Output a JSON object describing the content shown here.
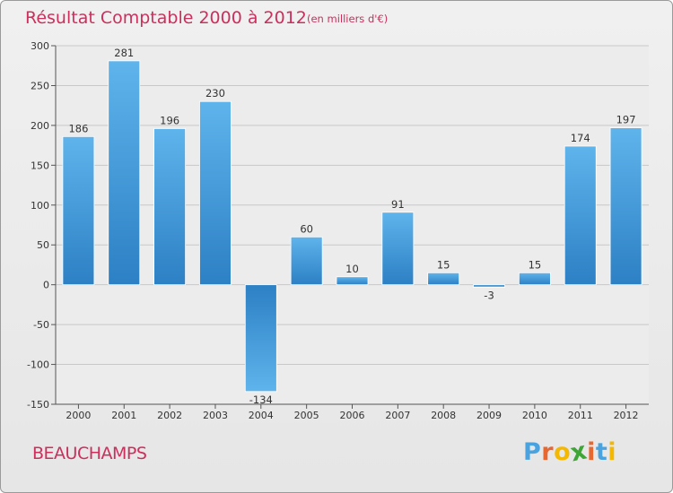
{
  "header": {
    "title": "Résultat Comptable 2000 à 2012",
    "subtitle": "(en milliers d'€)"
  },
  "footer": {
    "commune": "BEAUCHAMPS",
    "logo_letters": [
      "P",
      "r",
      "o",
      "x",
      "i",
      "t",
      "i"
    ],
    "logo_colors": [
      "#4aa3df",
      "#e8662f",
      "#f5b800",
      "#3fa535",
      "#e8662f",
      "#4aa3df",
      "#f5b800"
    ]
  },
  "colors": {
    "bar_top": "#5fb4ec",
    "bar_bottom": "#2c80c4",
    "accent": "#cc2f5c",
    "plot_bg": "#ececec"
  },
  "chart_data": {
    "type": "bar",
    "title": "Résultat Comptable 2000 à 2012",
    "subtitle": "(en milliers d'€)",
    "xlabel": "",
    "ylabel": "",
    "categories": [
      "2000",
      "2001",
      "2002",
      "2003",
      "2004",
      "2005",
      "2006",
      "2007",
      "2008",
      "2009",
      "2010",
      "2011",
      "2012"
    ],
    "values": [
      186,
      281,
      196,
      230,
      -134,
      60,
      10,
      91,
      15,
      -3,
      15,
      174,
      197
    ],
    "value_labels": [
      "186",
      "281",
      "196",
      "230",
      "-134",
      "60",
      "10",
      "91",
      "15",
      "-3",
      "15",
      "174",
      "197"
    ],
    "ylim": [
      -150,
      300
    ],
    "yticks": [
      300,
      250,
      200,
      150,
      100,
      50,
      0,
      -50,
      -100,
      -150
    ],
    "ytick_labels": [
      "300",
      "250",
      "200",
      "150",
      "100",
      "50",
      "0",
      "-50",
      "-100",
      "-150"
    ],
    "grid": true
  }
}
